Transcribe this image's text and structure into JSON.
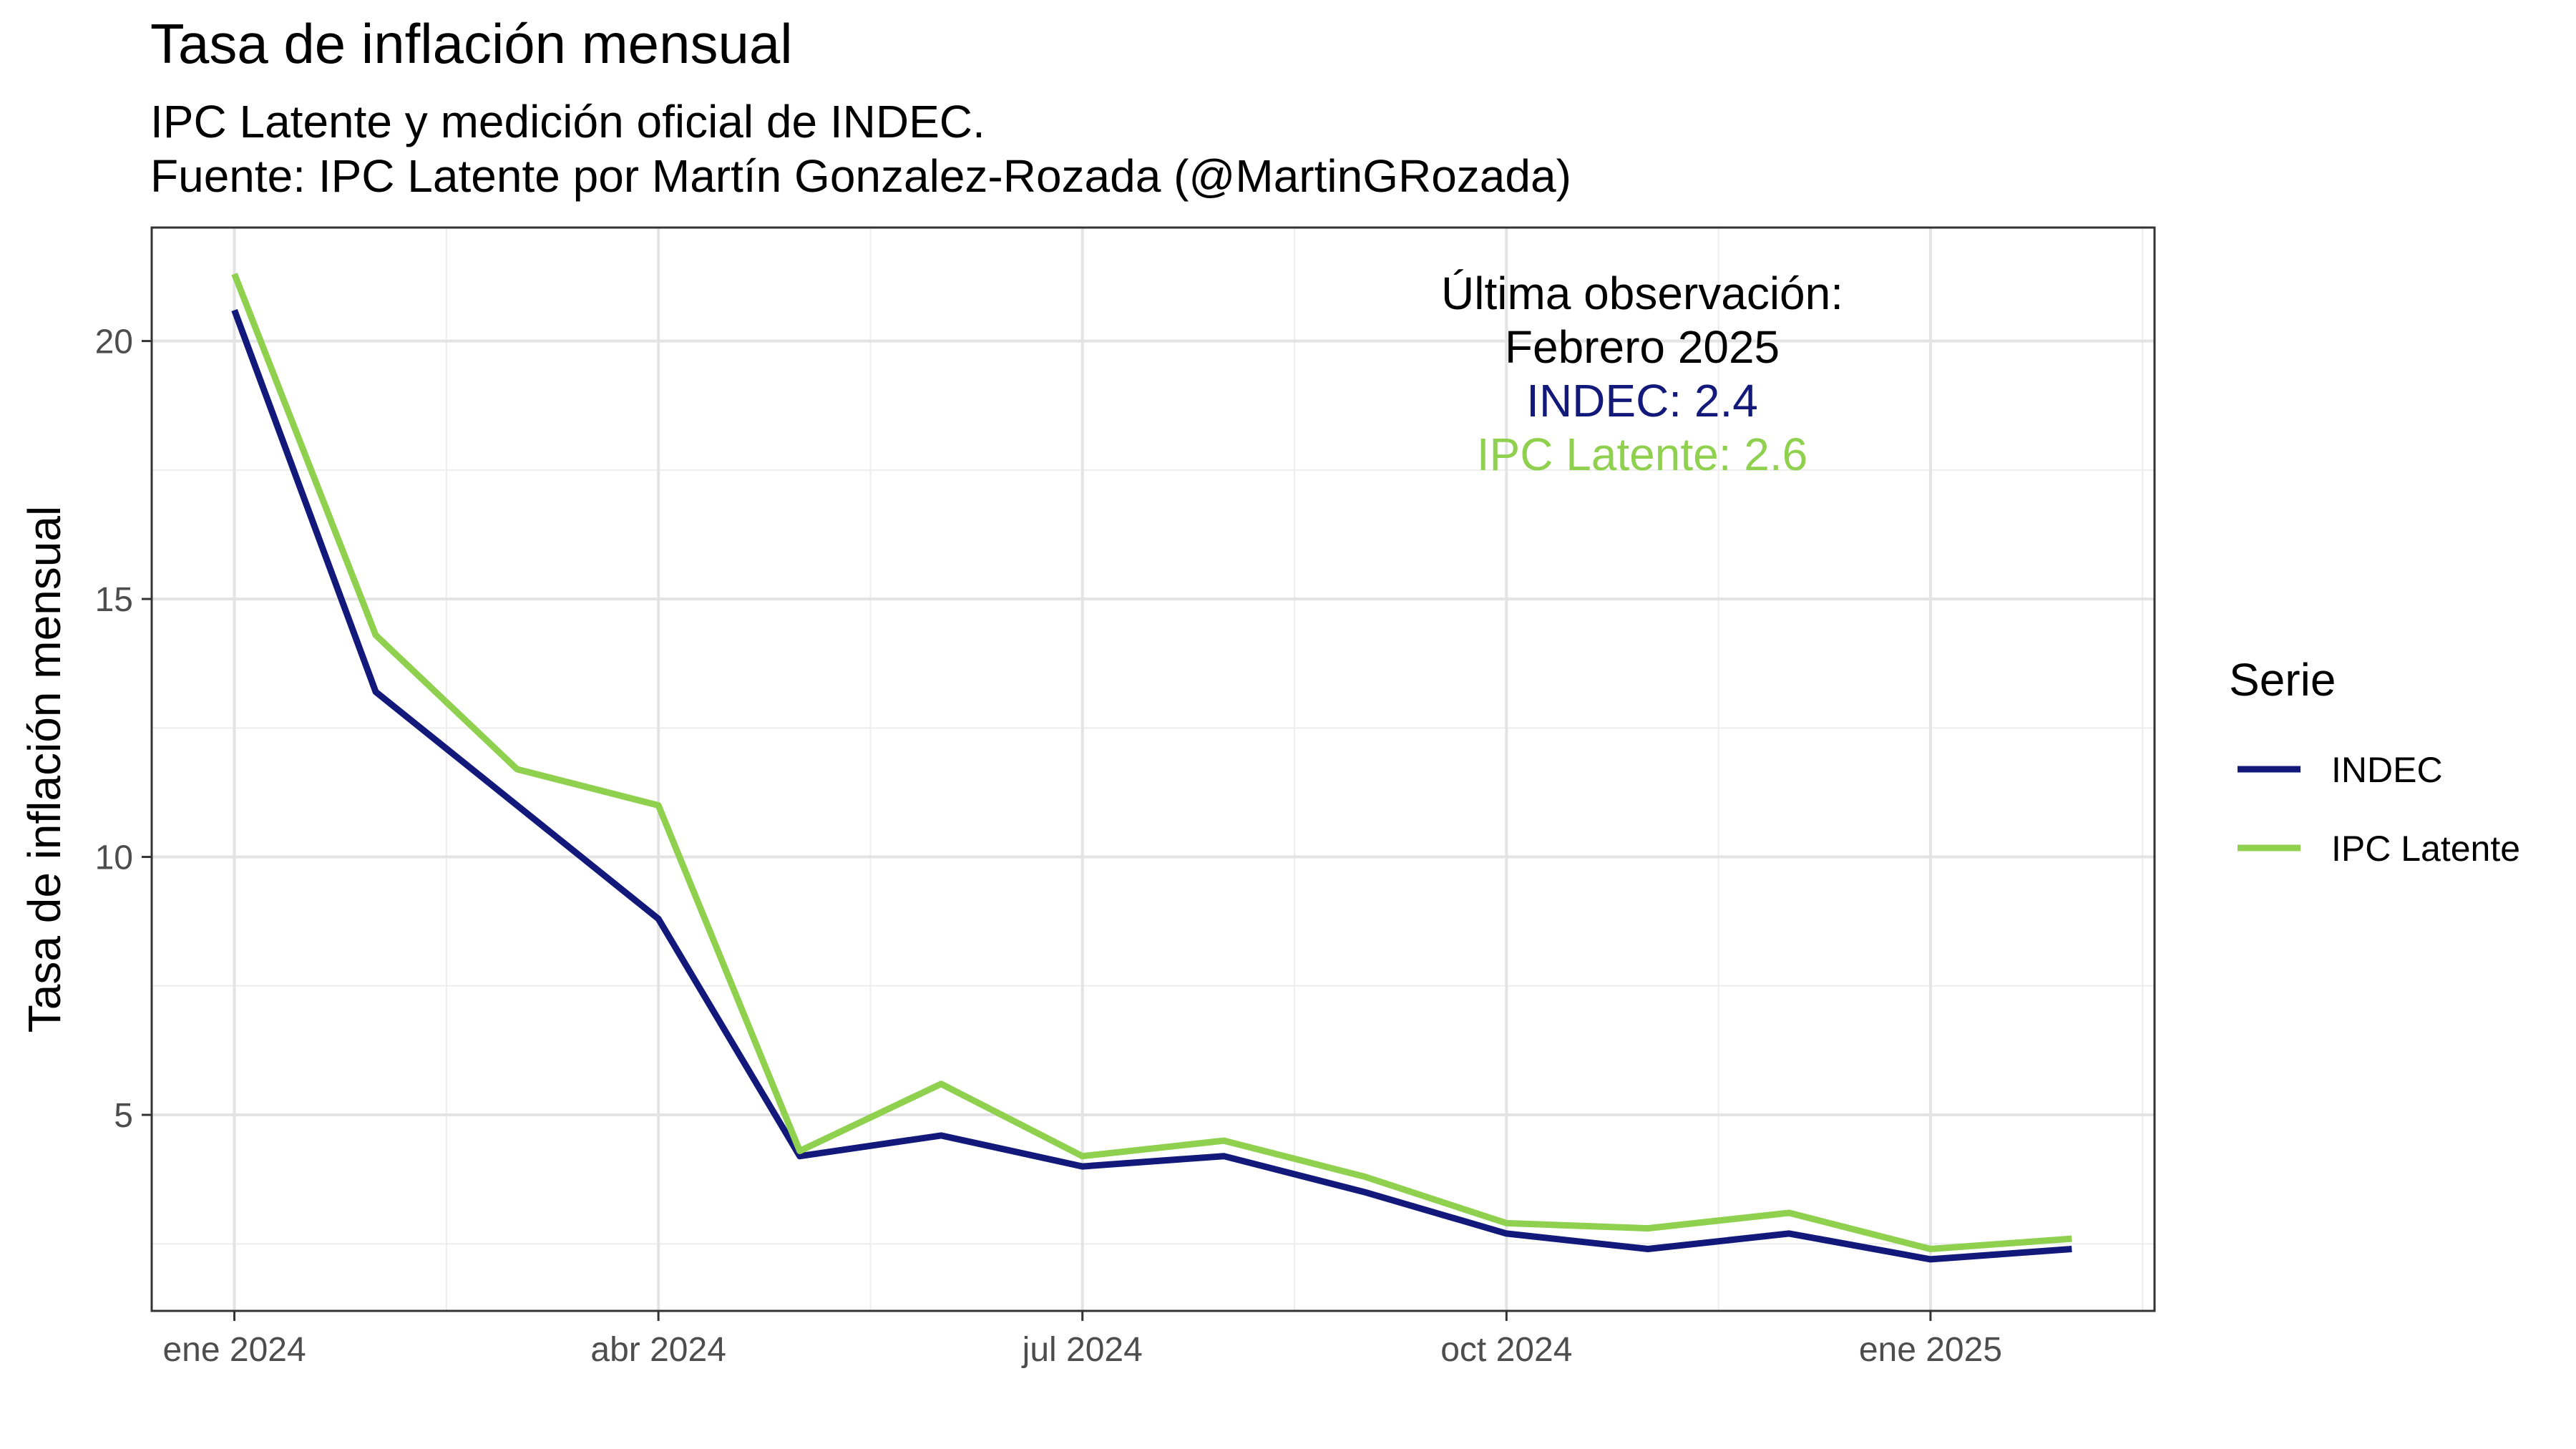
{
  "chart_data": {
    "type": "line",
    "title": "Tasa de inflación mensual",
    "subtitle_lines": [
      "IPC Latente y medición oficial de INDEC.",
      "Fuente: IPC Latente por Martín Gonzalez-Rozada (@MartinGRozada)"
    ],
    "xlabel": "",
    "ylabel": "Tasa de inflación mensual",
    "x": [
      "2024-01",
      "2024-02",
      "2024-03",
      "2024-04",
      "2024-05",
      "2024-06",
      "2024-07",
      "2024-08",
      "2024-09",
      "2024-10",
      "2024-11",
      "2024-12",
      "2025-01",
      "2025-02"
    ],
    "x_ticks": [
      {
        "x": "2024-01",
        "label": "ene 2024"
      },
      {
        "x": "2024-04",
        "label": "abr 2024"
      },
      {
        "x": "2024-07",
        "label": "jul 2024"
      },
      {
        "x": "2024-10",
        "label": "oct 2024"
      },
      {
        "x": "2025-01",
        "label": "ene 2025"
      }
    ],
    "y_ticks": [
      5,
      10,
      15,
      20
    ],
    "ylim": [
      1.2,
      22.2
    ],
    "grid": true,
    "legend": {
      "title": "Serie",
      "position": "right"
    },
    "series": [
      {
        "name": "INDEC",
        "color": "#12197a",
        "values": [
          20.6,
          13.2,
          11.0,
          8.8,
          4.2,
          4.6,
          4.0,
          4.2,
          3.5,
          2.7,
          2.4,
          2.7,
          2.2,
          2.4
        ]
      },
      {
        "name": "IPC Latente",
        "color": "#8fd14f",
        "values": [
          21.3,
          14.3,
          11.7,
          11.0,
          4.3,
          5.6,
          4.2,
          4.5,
          3.8,
          2.9,
          2.8,
          3.1,
          2.4,
          2.6
        ]
      }
    ],
    "annotation": {
      "lines": [
        {
          "text": "Última observación:",
          "color": "#000000"
        },
        {
          "text": "Febrero 2025",
          "color": "#000000"
        },
        {
          "text": "INDEC:  2.4",
          "color": "#12197a"
        },
        {
          "text": "IPC Latente:  2.6",
          "color": "#8fd14f"
        }
      ]
    }
  }
}
